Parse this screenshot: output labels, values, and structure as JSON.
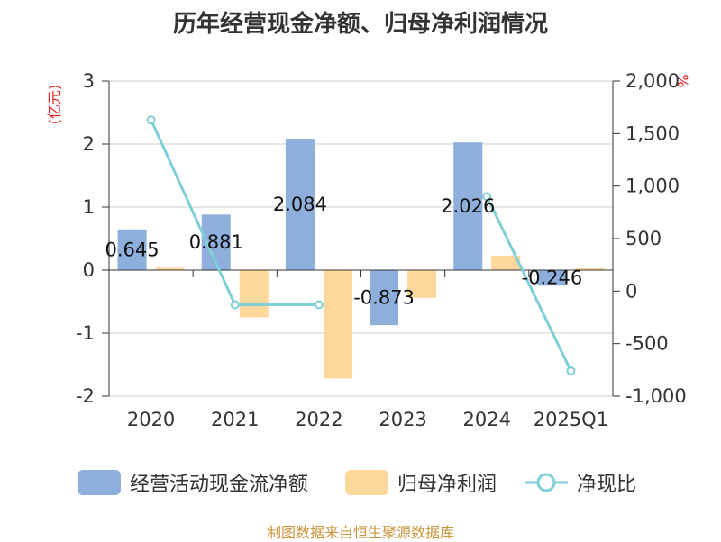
{
  "title": "历年经营现金净额、归母净利润情况",
  "left_unit": "(亿元)",
  "right_unit": "%",
  "source": "制图数据来自恒生聚源数据库",
  "colors": {
    "cash": "#8eaedc",
    "profit": "#fed89a",
    "ratio": "#7fcfd6",
    "unit": "#e0201e"
  },
  "legend": [
    {
      "label": "经营活动现金流净额",
      "color": "#8eaedc",
      "kind": "bar"
    },
    {
      "label": "归母净利润",
      "color": "#fed89a",
      "kind": "bar"
    },
    {
      "label": "净现比",
      "color": "#7fcfd6",
      "kind": "line"
    }
  ],
  "chart_data": {
    "type": "bar",
    "categories": [
      "2020",
      "2021",
      "2022",
      "2023",
      "2024",
      "2025Q1"
    ],
    "series": [
      {
        "name": "经营活动现金流净额",
        "type": "bar",
        "axis": "left",
        "values": [
          0.645,
          0.881,
          2.084,
          -0.873,
          2.026,
          -0.246
        ],
        "labels": [
          "0.645",
          "0.881",
          "2.084",
          "-0.873",
          "2.026",
          "-0.246"
        ]
      },
      {
        "name": "归母净利润",
        "type": "bar",
        "axis": "left",
        "values": [
          0.04,
          -0.75,
          -1.72,
          -0.44,
          0.23,
          0.03
        ]
      },
      {
        "name": "净现比",
        "type": "line",
        "axis": "right",
        "values": [
          1630,
          -130,
          -130,
          null,
          900,
          -760
        ]
      }
    ],
    "left_axis": {
      "min": -2,
      "max": 3,
      "ticks": [
        "-2",
        "-1",
        "0",
        "1",
        "2",
        "3"
      ],
      "unit": "(亿元)"
    },
    "right_axis": {
      "min": -1000,
      "max": 2000,
      "ticks": [
        "-1,000",
        "-500",
        "0",
        "500",
        "1,000",
        "1,500",
        "2,000"
      ],
      "unit": "%"
    },
    "grid": true,
    "legend_position": "bottom"
  }
}
